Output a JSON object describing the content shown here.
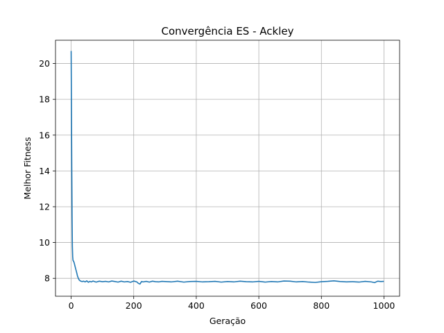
{
  "chart_data": {
    "type": "line",
    "title": "Convergência ES - Ackley",
    "xlabel": "Geração",
    "ylabel": "Melhor Fitness",
    "xlim": [
      -50,
      1050
    ],
    "ylim": [
      7.0,
      21.3
    ],
    "xticks": [
      0,
      200,
      400,
      600,
      800,
      1000
    ],
    "yticks": [
      8,
      10,
      12,
      14,
      16,
      18,
      20
    ],
    "grid": true,
    "series": [
      {
        "color": "#1f77b4",
        "x": [
          0,
          1,
          2,
          3,
          4,
          5,
          6,
          8,
          10,
          12,
          15,
          18,
          20,
          23,
          26,
          30,
          35,
          40,
          45,
          50,
          55,
          60,
          65,
          70,
          75,
          80,
          90,
          100,
          110,
          120,
          130,
          140,
          150,
          160,
          170,
          180,
          190,
          200,
          210,
          215,
          220,
          225,
          230,
          240,
          250,
          260,
          270,
          280,
          290,
          300,
          320,
          340,
          360,
          380,
          400,
          420,
          440,
          460,
          480,
          500,
          520,
          540,
          560,
          580,
          600,
          620,
          640,
          660,
          680,
          700,
          720,
          740,
          760,
          780,
          800,
          820,
          840,
          860,
          880,
          900,
          920,
          940,
          960,
          970,
          980,
          990,
          1000
        ],
        "y": [
          20.7,
          17.5,
          14.2,
          11.5,
          9.8,
          9.2,
          9.0,
          8.95,
          8.85,
          8.7,
          8.5,
          8.3,
          8.15,
          8.0,
          7.9,
          7.85,
          7.82,
          7.84,
          7.8,
          7.86,
          7.78,
          7.83,
          7.8,
          7.85,
          7.82,
          7.79,
          7.84,
          7.81,
          7.83,
          7.8,
          7.85,
          7.82,
          7.79,
          7.84,
          7.8,
          7.82,
          7.78,
          7.85,
          7.8,
          7.72,
          7.68,
          7.82,
          7.8,
          7.83,
          7.79,
          7.84,
          7.81,
          7.8,
          7.83,
          7.82,
          7.8,
          7.84,
          7.79,
          7.82,
          7.83,
          7.8,
          7.81,
          7.83,
          7.79,
          7.82,
          7.8,
          7.84,
          7.81,
          7.8,
          7.83,
          7.79,
          7.82,
          7.8,
          7.85,
          7.84,
          7.8,
          7.82,
          7.79,
          7.77,
          7.81,
          7.83,
          7.86,
          7.82,
          7.8,
          7.81,
          7.79,
          7.83,
          7.8,
          7.76,
          7.84,
          7.82,
          7.83
        ]
      }
    ]
  }
}
